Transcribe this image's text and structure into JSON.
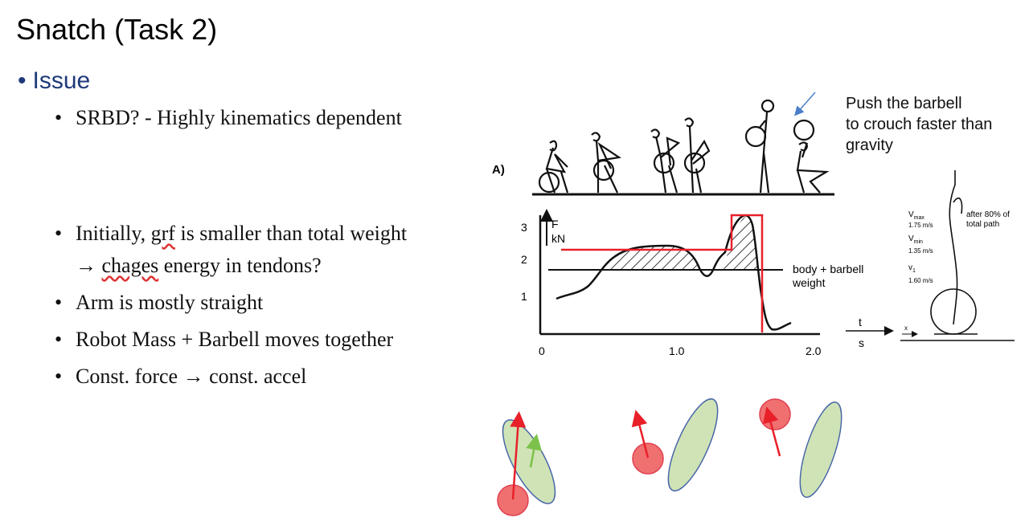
{
  "slide": {
    "title": "Snatch (Task 2)",
    "issue_label": "Issue",
    "bullets": {
      "b1": "SRBD? - Highly kinematics dependent",
      "b2_pre": "Initially, ",
      "b2_u": "grf",
      "b2_post": " is smaller than total weight",
      "b3_pre": "→ ",
      "b3_u": "chages",
      "b3_post": " energy in tendons?",
      "b4": "Arm is mostly straight",
      "b5": "Robot Mass + Barbell moves together",
      "b6": "Const. force → const. accel"
    },
    "note": {
      "line1": "Push the barbell",
      "line2": "to crouch faster than",
      "line3": "gravity"
    }
  },
  "figure": {
    "panel_label": "A)",
    "force_axis": "F",
    "force_unit": "kN",
    "ytick_3": "3",
    "ytick_2": "2",
    "ytick_1": "1",
    "xtick_0": "0",
    "xtick_1": "1.0",
    "xtick_2": "2.0",
    "weight_label_1": "body + barbell",
    "weight_label_2": "weight",
    "time_axis": "t",
    "time_unit": "s",
    "vmax_label": "V",
    "vmax_sub": "max",
    "vmax_value": "1.75 m/s",
    "vmin_label": "V",
    "vmin_sub": "min",
    "vmin_value": "1.35 m/s",
    "v1_label": "v",
    "v1_sub": "1",
    "v1_value": "1.60 m/s",
    "path_note_1": "after 80% of",
    "path_note_2": "total path",
    "x_label": "x"
  },
  "colors": {
    "issue_text": "#1f3a7a",
    "annotation_red": "#e8202a",
    "ellipse_green": "#cfe3b6",
    "ellipse_border": "#4a68a8",
    "ball_red": "#f07070",
    "arrow_blue": "#4a7fc8"
  }
}
